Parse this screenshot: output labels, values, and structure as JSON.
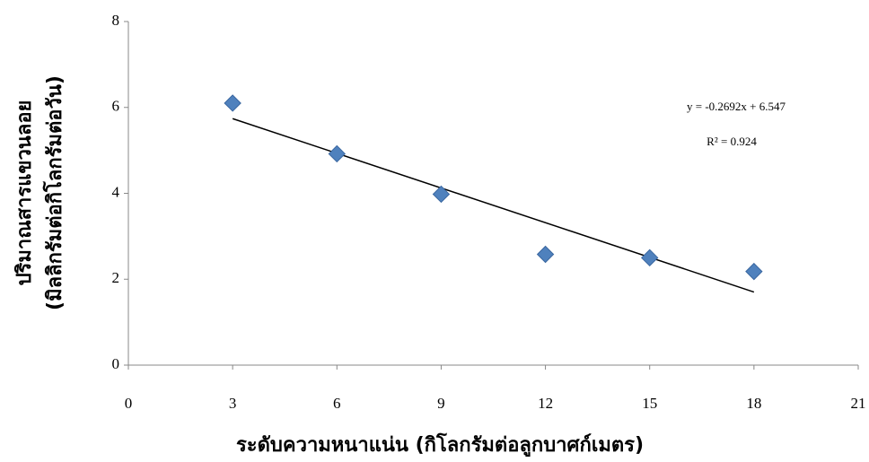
{
  "chart_data": {
    "type": "scatter",
    "x_label": "ระดับความหนาแน่น (กิโลกรัมต่อลูกบาศก์เมตร)",
    "y_label": [
      "ปริมาณสารแขวนลอย",
      "(มิลลิกรัมต่อกิโลกรัมต่อวัน)"
    ],
    "x": [
      3,
      6,
      9,
      12,
      15,
      18
    ],
    "values": [
      6.1,
      4.92,
      3.98,
      2.58,
      2.5,
      2.18
    ],
    "color": "#4f81bd",
    "xlim": [
      0,
      21
    ],
    "xticks": [
      0,
      3,
      6,
      9,
      12,
      15,
      18,
      21
    ],
    "ylim": [
      0,
      8
    ],
    "yticks": [
      0,
      2,
      4,
      6,
      8
    ],
    "grid": false,
    "trendline": {
      "slope": -0.2692,
      "intercept": 6.547,
      "label": "y = -0.2692x + 6.547",
      "r2_label": "R² = 0.924"
    }
  }
}
